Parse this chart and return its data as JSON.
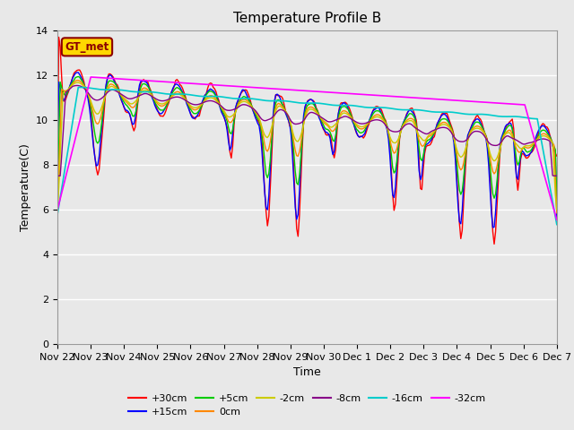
{
  "title": "Temperature Profile B",
  "xlabel": "Time",
  "ylabel": "Temperature(C)",
  "ylim": [
    0,
    14
  ],
  "annotation_text": "GT_met",
  "annotation_color": "#8B0000",
  "annotation_bg": "#FFD700",
  "x_tick_labels": [
    "Nov 22",
    "Nov 23",
    "Nov 24",
    "Nov 25",
    "Nov 26",
    "Nov 27",
    "Nov 28",
    "Nov 29",
    "Nov 30",
    "Dec 1",
    "Dec 2",
    "Dec 3",
    "Dec 4",
    "Dec 5",
    "Dec 6",
    "Dec 7"
  ],
  "series": {
    "+30cm": {
      "color": "#FF0000",
      "lw": 1.0
    },
    "+15cm": {
      "color": "#0000FF",
      "lw": 1.0
    },
    "+5cm": {
      "color": "#00CC00",
      "lw": 1.0
    },
    "0cm": {
      "color": "#FF8800",
      "lw": 1.0
    },
    "-2cm": {
      "color": "#CCCC00",
      "lw": 1.0
    },
    "-8cm": {
      "color": "#880088",
      "lw": 1.0
    },
    "-16cm": {
      "color": "#00CCCC",
      "lw": 1.2
    },
    "-32cm": {
      "color": "#FF00FF",
      "lw": 1.2
    }
  },
  "legend_order": [
    "+30cm",
    "+15cm",
    "+5cm",
    "0cm",
    "-2cm",
    "-8cm",
    "-16cm",
    "-32cm"
  ],
  "background_color": "#E8E8E8",
  "title_fontsize": 11,
  "label_fontsize": 9,
  "tick_fontsize": 8
}
